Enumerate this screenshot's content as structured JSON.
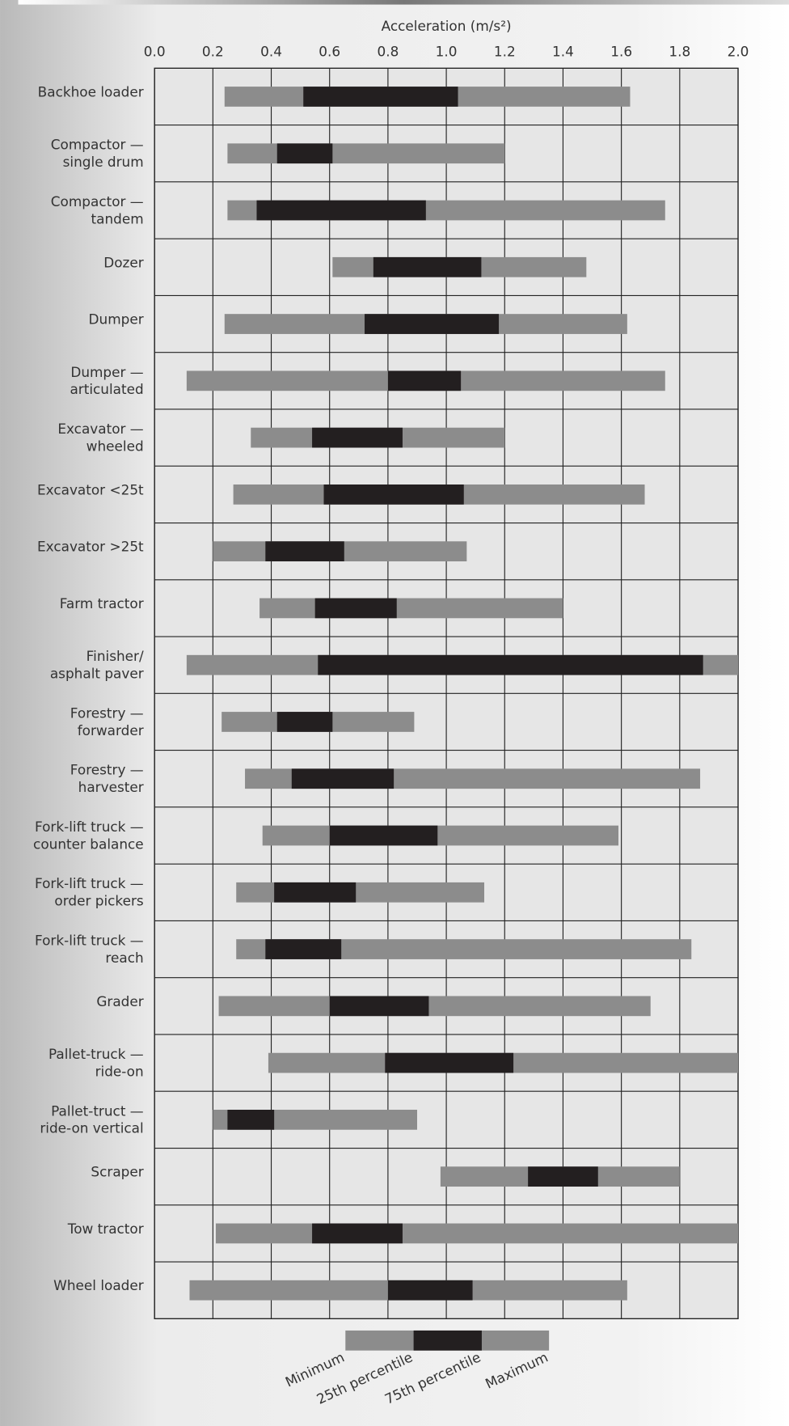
{
  "chart_data": {
    "type": "range_bar",
    "x_label": "Acceleration (m/s²)",
    "xlim": [
      0,
      2
    ],
    "xticks": [
      {
        "value": 0,
        "label": "0.0"
      },
      0.2,
      0.4,
      0.6,
      0.8,
      {
        "value": 1,
        "label": "1.0"
      },
      1.2,
      1.4,
      1.6,
      1.8,
      {
        "value": 2,
        "label": "2.0"
      }
    ],
    "grid": true,
    "categories": [
      "Backhoe loader",
      "Compactor —\nsingle drum",
      "Compactor —\ntandem",
      "Dozer",
      "Dumper",
      "Dumper —\narticulated",
      "Excavator —\nwheeled",
      "Excavator <25t",
      "Excavator >25t",
      "Farm tractor",
      "Finisher/\nasphalt paver",
      "Forestry —\nforwarder",
      "Forestry —\nharvester",
      "Fork-lift truck —\ncounter balance",
      "Fork-lift truck —\norder pickers",
      "Fork-lift truck —\nreach",
      "Grader",
      "Pallet-truck —\nride-on",
      "Pallet-truct —\nride-on vertical",
      "Scraper",
      "Tow tractor",
      "Wheel loader"
    ],
    "series": [
      {
        "name": "Minimum",
        "values": [
          0.24,
          0.25,
          0.25,
          0.61,
          0.24,
          0.11,
          0.33,
          0.27,
          0.2,
          0.36,
          0.11,
          0.23,
          0.31,
          0.37,
          0.28,
          0.28,
          0.22,
          0.39,
          0.2,
          0.98,
          0.21,
          0.12
        ]
      },
      {
        "name": "25th percentile",
        "values": [
          0.51,
          0.42,
          0.35,
          0.75,
          0.72,
          0.8,
          0.54,
          0.58,
          0.38,
          0.55,
          0.56,
          0.42,
          0.47,
          0.6,
          0.41,
          0.38,
          0.6,
          0.79,
          0.25,
          1.28,
          0.54,
          0.8
        ]
      },
      {
        "name": "75th percentile",
        "values": [
          1.04,
          0.61,
          0.93,
          1.12,
          1.18,
          1.05,
          0.85,
          1.06,
          0.65,
          0.83,
          1.88,
          0.61,
          0.82,
          0.97,
          0.69,
          0.64,
          0.94,
          1.23,
          0.41,
          1.52,
          0.85,
          1.09
        ]
      },
      {
        "name": "Maximum",
        "values": [
          1.63,
          1.2,
          1.75,
          1.48,
          1.62,
          1.75,
          1.2,
          1.68,
          1.07,
          1.4,
          2.0,
          0.89,
          1.87,
          1.59,
          1.13,
          1.84,
          1.7,
          2.0,
          0.9,
          1.8,
          2.0,
          1.62
        ]
      }
    ],
    "range_color": "#8c8c8c",
    "iqr_color": "#231f20"
  }
}
